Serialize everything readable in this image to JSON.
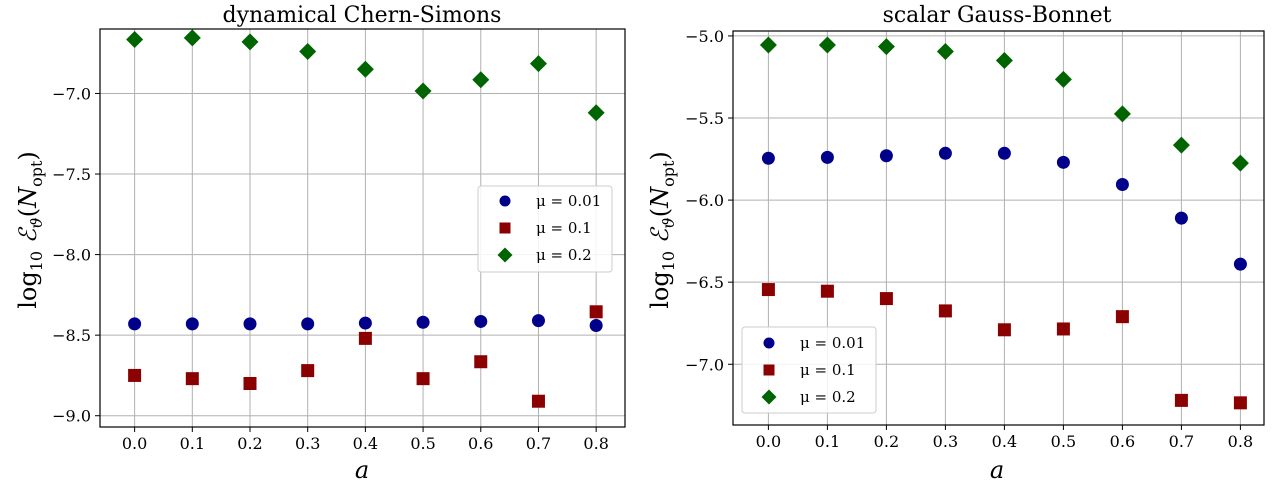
{
  "colors": {
    "mu_001": "#00008b",
    "mu_01": "#8b0000",
    "mu_02": "#006400"
  },
  "chart_data": [
    {
      "type": "scatter",
      "title": "dynamical Chern-Simons",
      "xlabel": "a",
      "ylabel": "log10 E_θ(N_opt)",
      "xlim": [
        -0.06,
        0.85
      ],
      "ylim": [
        -9.07,
        -6.6
      ],
      "xticks": [
        0.0,
        0.1,
        0.2,
        0.3,
        0.4,
        0.5,
        0.6,
        0.7,
        0.8
      ],
      "xtick_labels": [
        "0.0",
        "0.1",
        "0.2",
        "0.3",
        "0.4",
        "0.5",
        "0.6",
        "0.7",
        "0.8"
      ],
      "yticks": [
        -9.0,
        -8.5,
        -8.0,
        -7.5,
        -7.0
      ],
      "ytick_labels": [
        "−9.0",
        "−8.5",
        "−8.0",
        "−7.5",
        "−7.0"
      ],
      "grid": true,
      "legend_position": "center-right",
      "x": [
        0.0,
        0.1,
        0.2,
        0.3,
        0.4,
        0.5,
        0.6,
        0.7,
        0.8
      ],
      "series": [
        {
          "name": "μ = 0.01",
          "marker": "circle",
          "color": "#00008b",
          "values": [
            -8.43,
            -8.43,
            -8.43,
            -8.43,
            -8.425,
            -8.42,
            -8.415,
            -8.41,
            -8.44
          ]
        },
        {
          "name": "μ = 0.1",
          "marker": "square",
          "color": "#8b0000",
          "values": [
            -8.75,
            -8.77,
            -8.8,
            -8.72,
            -8.52,
            -8.77,
            -8.665,
            -8.91,
            -8.355
          ]
        },
        {
          "name": "μ = 0.2",
          "marker": "diamond",
          "color": "#006400",
          "values": [
            -6.665,
            -6.655,
            -6.68,
            -6.74,
            -6.85,
            -6.985,
            -6.915,
            -6.815,
            -7.12
          ]
        }
      ]
    },
    {
      "type": "scatter",
      "title": "scalar Gauss-Bonnet",
      "xlabel": "a",
      "ylabel": "log10 E_θ(N_opt)",
      "xlim": [
        -0.06,
        0.84
      ],
      "ylim": [
        -7.37,
        -4.97
      ],
      "xticks": [
        0.0,
        0.1,
        0.2,
        0.3,
        0.4,
        0.5,
        0.6,
        0.7,
        0.8
      ],
      "xtick_labels": [
        "0.0",
        "0.1",
        "0.2",
        "0.3",
        "0.4",
        "0.5",
        "0.6",
        "0.7",
        "0.8"
      ],
      "yticks": [
        -7.0,
        -6.5,
        -6.0,
        -5.5,
        -5.0
      ],
      "ytick_labels": [
        "−7.0",
        "−6.5",
        "−6.0",
        "−5.5",
        "−5.0"
      ],
      "grid": true,
      "legend_position": "lower-left",
      "x": [
        0.0,
        0.1,
        0.2,
        0.3,
        0.4,
        0.5,
        0.6,
        0.7,
        0.8
      ],
      "series": [
        {
          "name": "μ = 0.01",
          "marker": "circle",
          "color": "#00008b",
          "values": [
            -5.745,
            -5.74,
            -5.73,
            -5.715,
            -5.715,
            -5.77,
            -5.905,
            -6.11,
            -6.39
          ]
        },
        {
          "name": "μ = 0.1",
          "marker": "square",
          "color": "#8b0000",
          "values": [
            -6.545,
            -6.555,
            -6.6,
            -6.675,
            -6.79,
            -6.785,
            -6.71,
            -7.22,
            -7.235
          ]
        },
        {
          "name": "μ = 0.2",
          "marker": "diamond",
          "color": "#006400",
          "values": [
            -5.055,
            -5.055,
            -5.065,
            -5.095,
            -5.15,
            -5.265,
            -5.475,
            -5.665,
            -5.775
          ]
        }
      ]
    }
  ]
}
